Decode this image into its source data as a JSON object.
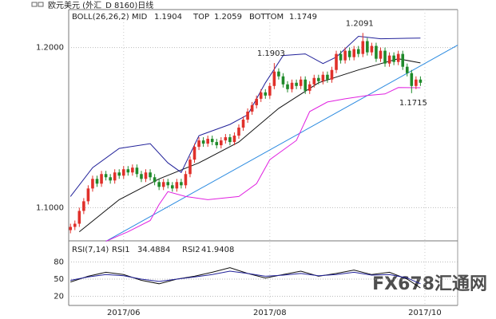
{
  "chart_data": {
    "type": "candlestick",
    "title": "欧元美元 (外汇_D 8160)日线",
    "indicator": "BOLL(26,26,2)",
    "up_color": "#e0302a",
    "down_color": "#1f8a2a",
    "ylim": [
      1.0793,
      1.2237
    ],
    "yticks": [
      {
        "value": 1.1,
        "label": "1.1000"
      },
      {
        "value": 1.2,
        "label": "1.2000"
      }
    ],
    "xlim": [
      -0.4,
      87.4
    ],
    "xticks": [
      {
        "value": 12,
        "label": "2017/06"
      },
      {
        "value": 45,
        "label": "2017/08"
      },
      {
        "value": 80,
        "label": "2017/10"
      }
    ],
    "grid": true,
    "candles": [
      [
        1.086,
        1.09,
        1.084,
        1.088
      ],
      [
        1.088,
        1.092,
        1.086,
        1.09
      ],
      [
        1.09,
        1.1,
        1.088,
        1.098
      ],
      [
        1.098,
        1.106,
        1.096,
        1.104
      ],
      [
        1.104,
        1.114,
        1.102,
        1.112
      ],
      [
        1.112,
        1.12,
        1.11,
        1.118
      ],
      [
        1.118,
        1.12,
        1.113,
        1.115
      ],
      [
        1.115,
        1.123,
        1.113,
        1.121
      ],
      [
        1.121,
        1.123,
        1.117,
        1.119
      ],
      [
        1.119,
        1.121,
        1.115,
        1.117
      ],
      [
        1.117,
        1.124,
        1.115,
        1.122
      ],
      [
        1.122,
        1.124,
        1.118,
        1.12
      ],
      [
        1.12,
        1.126,
        1.118,
        1.124
      ],
      [
        1.124,
        1.126,
        1.12,
        1.122
      ],
      [
        1.122,
        1.127,
        1.12,
        1.125
      ],
      [
        1.125,
        1.127,
        1.119,
        1.121
      ],
      [
        1.121,
        1.123,
        1.116,
        1.118
      ],
      [
        1.118,
        1.124,
        1.116,
        1.122
      ],
      [
        1.122,
        1.124,
        1.117,
        1.119
      ],
      [
        1.119,
        1.121,
        1.114,
        1.116
      ],
      [
        1.116,
        1.118,
        1.111,
        1.113
      ],
      [
        1.113,
        1.118,
        1.111,
        1.116
      ],
      [
        1.116,
        1.118,
        1.112,
        1.114
      ],
      [
        1.114,
        1.116,
        1.11,
        1.112
      ],
      [
        1.112,
        1.118,
        1.11,
        1.116
      ],
      [
        1.116,
        1.118,
        1.112,
        1.114
      ],
      [
        1.114,
        1.123,
        1.112,
        1.121
      ],
      [
        1.121,
        1.132,
        1.119,
        1.13
      ],
      [
        1.13,
        1.14,
        1.128,
        1.138
      ],
      [
        1.138,
        1.144,
        1.136,
        1.142
      ],
      [
        1.142,
        1.144,
        1.138,
        1.14
      ],
      [
        1.14,
        1.145,
        1.138,
        1.143
      ],
      [
        1.143,
        1.145,
        1.139,
        1.141
      ],
      [
        1.141,
        1.143,
        1.137,
        1.139
      ],
      [
        1.139,
        1.144,
        1.137,
        1.142
      ],
      [
        1.142,
        1.146,
        1.14,
        1.144
      ],
      [
        1.144,
        1.146,
        1.139,
        1.141
      ],
      [
        1.141,
        1.147,
        1.139,
        1.145
      ],
      [
        1.145,
        1.152,
        1.143,
        1.15
      ],
      [
        1.15,
        1.157,
        1.148,
        1.155
      ],
      [
        1.155,
        1.162,
        1.153,
        1.16
      ],
      [
        1.16,
        1.166,
        1.158,
        1.164
      ],
      [
        1.164,
        1.17,
        1.162,
        1.168
      ],
      [
        1.168,
        1.174,
        1.166,
        1.172
      ],
      [
        1.172,
        1.174,
        1.168,
        1.17
      ],
      [
        1.17,
        1.178,
        1.168,
        1.176
      ],
      [
        1.176,
        1.1903,
        1.174,
        1.185
      ],
      [
        1.185,
        1.187,
        1.18,
        1.182
      ],
      [
        1.182,
        1.184,
        1.175,
        1.177
      ],
      [
        1.177,
        1.179,
        1.172,
        1.174
      ],
      [
        1.174,
        1.18,
        1.172,
        1.178
      ],
      [
        1.178,
        1.18,
        1.174,
        1.176
      ],
      [
        1.176,
        1.182,
        1.174,
        1.18
      ],
      [
        1.18,
        1.182,
        1.171,
        1.173
      ],
      [
        1.173,
        1.179,
        1.171,
        1.177
      ],
      [
        1.177,
        1.183,
        1.175,
        1.181
      ],
      [
        1.181,
        1.183,
        1.177,
        1.179
      ],
      [
        1.179,
        1.185,
        1.177,
        1.183
      ],
      [
        1.183,
        1.185,
        1.178,
        1.18
      ],
      [
        1.18,
        1.188,
        1.178,
        1.186
      ],
      [
        1.186,
        1.198,
        1.184,
        1.196
      ],
      [
        1.196,
        1.198,
        1.19,
        1.192
      ],
      [
        1.192,
        1.2,
        1.19,
        1.198
      ],
      [
        1.198,
        1.2,
        1.192,
        1.194
      ],
      [
        1.194,
        1.201,
        1.192,
        1.199
      ],
      [
        1.199,
        1.201,
        1.194,
        1.196
      ],
      [
        1.196,
        1.2091,
        1.194,
        1.204
      ],
      [
        1.204,
        1.206,
        1.195,
        1.197
      ],
      [
        1.197,
        1.203,
        1.195,
        1.201
      ],
      [
        1.201,
        1.203,
        1.191,
        1.193
      ],
      [
        1.193,
        1.2,
        1.191,
        1.198
      ],
      [
        1.198,
        1.2,
        1.188,
        1.19
      ],
      [
        1.19,
        1.197,
        1.188,
        1.195
      ],
      [
        1.195,
        1.197,
        1.189,
        1.191
      ],
      [
        1.191,
        1.198,
        1.189,
        1.196
      ],
      [
        1.196,
        1.198,
        1.186,
        1.188
      ],
      [
        1.188,
        1.19,
        1.182,
        1.184
      ],
      [
        1.184,
        1.186,
        1.1715,
        1.176
      ],
      [
        1.176,
        1.182,
        1.174,
        1.18
      ],
      [
        1.18,
        1.182,
        1.176,
        1.178
      ]
    ],
    "annotations": [
      {
        "candle": 46,
        "field": 1,
        "color": "#e0302a"
      },
      {
        "candle": 66,
        "field": 1,
        "color": "#e0302a"
      },
      {
        "candle": 77,
        "field": 2,
        "color": "#1f8a2a"
      }
    ],
    "series": [
      {
        "name": "MID",
        "color": "#111111",
        "x": [
          2,
          11,
          20,
          29,
          38,
          47,
          56,
          65,
          74,
          79
        ],
        "values": [
          1.085,
          1.105,
          1.118,
          1.128,
          1.141,
          1.162,
          1.178,
          1.186,
          1.193,
          1.1904
        ]
      },
      {
        "name": "TOP",
        "color": "#22229a",
        "x": [
          0,
          5,
          11,
          18,
          22,
          25,
          29,
          36,
          40,
          44,
          48,
          53,
          57,
          60,
          65,
          70,
          79
        ],
        "values": [
          1.107,
          1.125,
          1.137,
          1.14,
          1.128,
          1.122,
          1.145,
          1.152,
          1.158,
          1.178,
          1.195,
          1.196,
          1.19,
          1.194,
          1.207,
          1.2055,
          1.2059
        ]
      },
      {
        "name": "BOTTOM",
        "color": "#e020e0",
        "x": [
          8,
          13,
          18,
          20,
          22,
          26,
          31,
          38,
          42,
          45,
          51,
          54,
          58,
          62,
          67,
          71,
          74,
          79
        ],
        "values": [
          1.079,
          1.085,
          1.092,
          1.102,
          1.11,
          1.107,
          1.105,
          1.107,
          1.115,
          1.13,
          1.142,
          1.16,
          1.166,
          1.168,
          1.17,
          1.171,
          1.175,
          1.1749
        ]
      }
    ],
    "trendline": {
      "color": "#2a8ae0",
      "x": [
        8,
        87.4
      ],
      "values": [
        1.079,
        1.2015
      ]
    },
    "rsi": {
      "title": "RSI(7,14)",
      "ylim": [
        4,
        117
      ],
      "yticks": [
        20,
        50,
        80
      ],
      "series": [
        {
          "name": "RSI1",
          "color": "#111111",
          "x": [
            0,
            4,
            8,
            12,
            16,
            20,
            24,
            28,
            32,
            36,
            40,
            44,
            48,
            52,
            56,
            60,
            64,
            68,
            72,
            76,
            79
          ],
          "values": [
            45,
            55,
            62,
            58,
            48,
            42,
            50,
            55,
            62,
            70,
            60,
            52,
            58,
            64,
            55,
            60,
            66,
            58,
            62,
            50,
            34.4884
          ]
        },
        {
          "name": "RSI2",
          "color": "#22229a",
          "x": [
            0,
            4,
            8,
            12,
            16,
            20,
            24,
            28,
            32,
            36,
            40,
            44,
            48,
            52,
            56,
            60,
            64,
            68,
            72,
            76,
            79
          ],
          "values": [
            48,
            54,
            58,
            56,
            50,
            46,
            50,
            54,
            58,
            64,
            60,
            55,
            57,
            60,
            56,
            58,
            62,
            57,
            58,
            52,
            41.9408
          ]
        }
      ]
    },
    "watermark": "FX678汇通网"
  }
}
